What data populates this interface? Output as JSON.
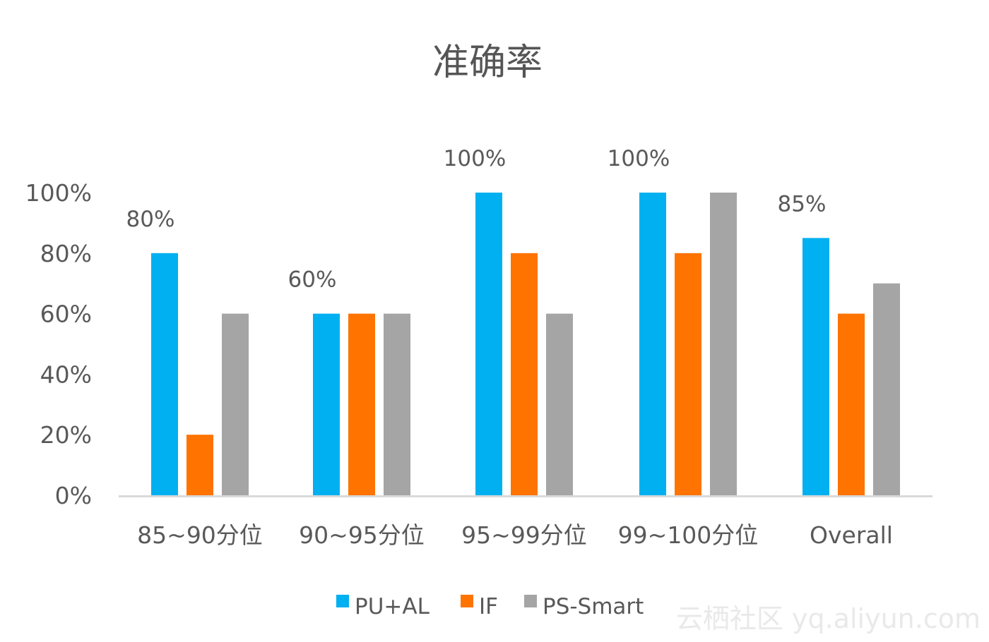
{
  "chart_data": {
    "type": "bar",
    "title": "准确率",
    "xlabel": "",
    "ylabel": "",
    "categories": [
      "85~90分位",
      "90~95分位",
      "95~99分位",
      "99~100分位",
      "Overall"
    ],
    "series": [
      {
        "name": "PU+AL",
        "color": "#00b0f0",
        "values": [
          80,
          60,
          100,
          100,
          85
        ]
      },
      {
        "name": "IF",
        "color": "#ff7300",
        "values": [
          20,
          60,
          80,
          80,
          60
        ]
      },
      {
        "name": "PS-Smart",
        "color": "#a5a5a5",
        "values": [
          60,
          60,
          60,
          100,
          70
        ]
      }
    ],
    "ylim": [
      0,
      100
    ],
    "yticks": [
      "0%",
      "20%",
      "40%",
      "60%",
      "80%",
      "100%"
    ],
    "data_labels": [
      {
        "category_index": 0,
        "series_index": 0,
        "text": "80%"
      },
      {
        "category_index": 1,
        "series_index": 0,
        "text": "60%"
      },
      {
        "category_index": 2,
        "series_index": 0,
        "text": "100%"
      },
      {
        "category_index": 3,
        "series_index": 0,
        "text": "100%"
      },
      {
        "category_index": 4,
        "series_index": 0,
        "text": "85%"
      }
    ],
    "grid": false,
    "legend_position": "bottom",
    "watermark": "云栖社区 yq.aliyun.com"
  }
}
